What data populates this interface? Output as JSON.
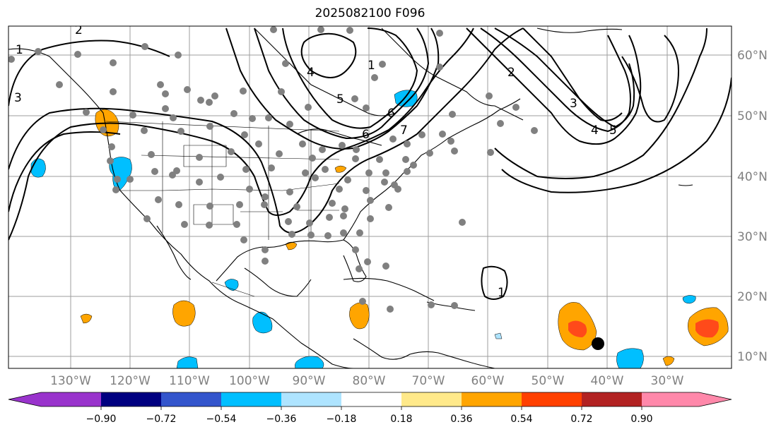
{
  "title": "2025082100 F096",
  "map": {
    "lon_labels": [
      "130°W",
      "120°W",
      "110°W",
      "100°W",
      "90°W",
      "80°W",
      "70°W",
      "60°W",
      "50°W",
      "40°W",
      "30°W"
    ],
    "lat_labels": [
      "60°N",
      "50°N",
      "40°N",
      "30°N",
      "20°N",
      "10°N"
    ],
    "contour_labels": [
      "1",
      "2",
      "3",
      "4",
      "5",
      "6",
      "7",
      "1",
      "2",
      "3",
      "4",
      "5",
      "6",
      "1"
    ]
  },
  "colorbar": {
    "ticks": [
      "−0.90",
      "−0.72",
      "−0.54",
      "−0.36",
      "−0.18",
      "0.18",
      "0.36",
      "0.54",
      "0.72",
      "0.90"
    ],
    "colors": [
      "#9933cc",
      "#000080",
      "#3355cc",
      "#00bfff",
      "#aee4ff",
      "#ffffff",
      "#ffe98a",
      "#ffa500",
      "#ff4000",
      "#b22222",
      "#ff88aa"
    ]
  },
  "shading_colors": {
    "light_blue": "#00bfff",
    "orange": "#ffa500",
    "red_orange": "#ff4a1a",
    "dot_grey": "#808080"
  }
}
